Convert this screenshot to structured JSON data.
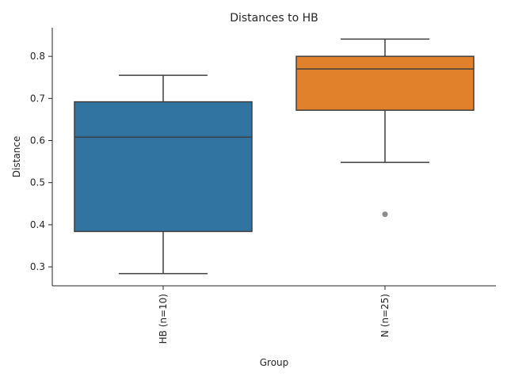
{
  "chart_data": {
    "type": "box",
    "title": "Distances to HB",
    "xlabel": "Group",
    "ylabel": "Distance",
    "ylim": [
      0.255,
      0.868
    ],
    "yticks": [
      "0.3",
      "0.4",
      "0.5",
      "0.6",
      "0.7",
      "0.8"
    ],
    "grid": false,
    "categories": [
      "HB (n=10)",
      "N (n=25)"
    ],
    "boxes": [
      {
        "name": "HB (n=10)",
        "whisker_low": 0.284,
        "q1": 0.384,
        "median": 0.608,
        "q3": 0.692,
        "whisker_high": 0.755,
        "outliers": [],
        "color": "#3274a1"
      },
      {
        "name": "N (n=25)",
        "whisker_low": 0.548,
        "q1": 0.672,
        "median": 0.77,
        "q3": 0.8,
        "whisker_high": 0.841,
        "outliers": [
          0.425
        ],
        "color": "#e1812c"
      }
    ]
  }
}
